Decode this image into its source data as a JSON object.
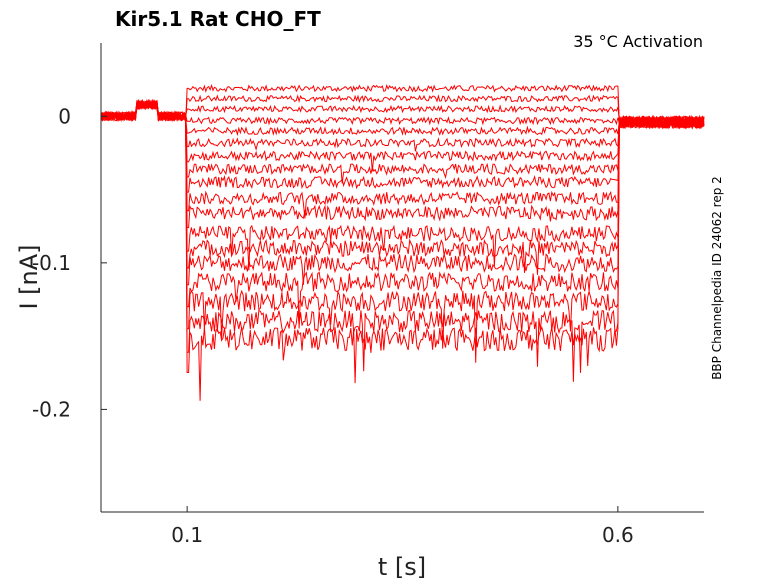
{
  "chart_data": {
    "type": "line",
    "title": "Kir5.1  Rat  CHO_FT",
    "subtitle": "35 °C  Activation",
    "side_label": "BBP Channelpedia ID 24062 rep 2",
    "xlabel": "t [s]",
    "ylabel": "I [nA]",
    "xlim": [
      0.0,
      0.7
    ],
    "ylim": [
      -0.27,
      0.05
    ],
    "xticks": [
      {
        "value": 0.1,
        "label": "0.1"
      },
      {
        "value": 0.6,
        "label": "0.6"
      }
    ],
    "yticks": [
      {
        "value": 0,
        "label": "0"
      },
      {
        "value": -0.1,
        "label": "-0.1"
      },
      {
        "value": -0.2,
        "label": "-0.2"
      }
    ],
    "color": "#ff0000",
    "grid": false,
    "pulse_start": 0.1,
    "pulse_end": 0.6,
    "baseline": 0.0,
    "series": [
      {
        "values": {
          "step_level": 0.019
        }
      },
      {
        "values": {
          "step_level": 0.012
        }
      },
      {
        "values": {
          "step_level": 0.005
        }
      },
      {
        "values": {
          "step_level": -0.003
        }
      },
      {
        "values": {
          "step_level": -0.01
        }
      },
      {
        "values": {
          "step_level": -0.018
        }
      },
      {
        "values": {
          "step_level": -0.027
        }
      },
      {
        "values": {
          "step_level": -0.036
        }
      },
      {
        "values": {
          "step_level": -0.045
        }
      },
      {
        "values": {
          "step_level": -0.056
        }
      },
      {
        "values": {
          "step_level": -0.066
        }
      },
      {
        "values": {
          "step_level": -0.08
        }
      },
      {
        "values": {
          "step_level": -0.09
        }
      },
      {
        "values": {
          "step_level": -0.1
        }
      },
      {
        "values": {
          "step_level": -0.113
        }
      },
      {
        "values": {
          "step_level": -0.126
        }
      },
      {
        "values": {
          "step_level": -0.14
        }
      },
      {
        "values": {
          "step_level": -0.152
        }
      }
    ]
  }
}
